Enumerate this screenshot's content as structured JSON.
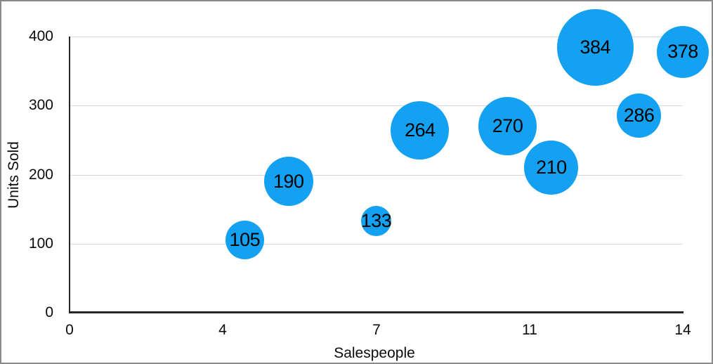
{
  "chart_data": {
    "type": "bubble",
    "title": "",
    "xlabel": "Salespeople",
    "ylabel": "Units Sold",
    "xlim": [
      0,
      14
    ],
    "ylim": [
      0,
      400
    ],
    "x_ticks": [
      {
        "label": "0",
        "value": 0
      },
      {
        "label": "4",
        "value": 3.5
      },
      {
        "label": "7",
        "value": 7
      },
      {
        "label": "11",
        "value": 10.5
      },
      {
        "label": "14",
        "value": 14
      }
    ],
    "y_ticks": [
      {
        "label": "0",
        "value": 0
      },
      {
        "label": "100",
        "value": 100
      },
      {
        "label": "200",
        "value": 200
      },
      {
        "label": "300",
        "value": 300
      },
      {
        "label": "400",
        "value": 400
      }
    ],
    "grid": "horizontal-only",
    "legend": "none",
    "series": [
      {
        "name": "Units Sold",
        "color": "#14A1F2",
        "points": [
          {
            "x": 4,
            "y": 105,
            "label": "105",
            "radius_px": 27.5
          },
          {
            "x": 5,
            "y": 190,
            "label": "190",
            "radius_px": 35
          },
          {
            "x": 7,
            "y": 133,
            "label": "133",
            "radius_px": 21.5
          },
          {
            "x": 8,
            "y": 264,
            "label": "264",
            "radius_px": 41.5
          },
          {
            "x": 10,
            "y": 270,
            "label": "270",
            "radius_px": 41.5
          },
          {
            "x": 11,
            "y": 210,
            "label": "210",
            "radius_px": 38.5
          },
          {
            "x": 12,
            "y": 384,
            "label": "384",
            "radius_px": 54.5
          },
          {
            "x": 13,
            "y": 286,
            "label": "286",
            "radius_px": 31.5
          },
          {
            "x": 14,
            "y": 378,
            "label": "378",
            "radius_px": 37
          }
        ]
      }
    ]
  },
  "colors": {
    "background": "#ffffff",
    "bubble_fill": "#14A1F2",
    "bubble_label_text": "#000000",
    "gridline": "#d8d8d8",
    "axis_line": "#262626",
    "tick_label_text": "#0a0a0a",
    "frame_border": "#8a8a8a"
  }
}
